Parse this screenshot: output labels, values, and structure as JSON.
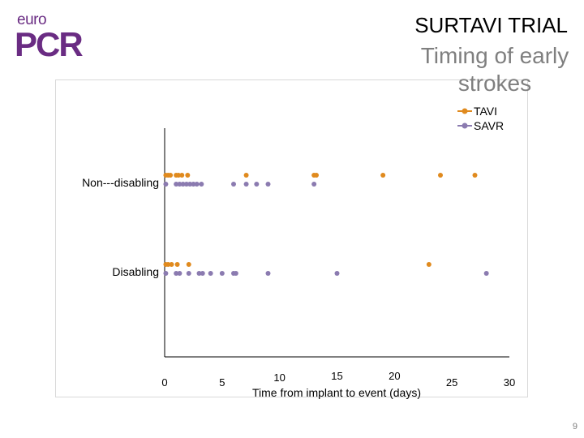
{
  "logo": {
    "line1": "euro",
    "line2": "PCR"
  },
  "slide": {
    "title": "SURTAVI TRIAL",
    "page_number": "9"
  },
  "colors": {
    "tavi": "#E08A1E",
    "savr": "#8B7BB0",
    "brand": "#6a2c83"
  },
  "chart_data": {
    "type": "scatter",
    "title": "Timing of early strokes",
    "xlabel": "Time from implant to event (days)",
    "ylabel": "",
    "xlim": [
      0,
      30
    ],
    "xticks": [
      "0",
      "5",
      "10",
      "15",
      "20",
      "25",
      "30"
    ],
    "categories": [
      "Non---disabling",
      "Disabling"
    ],
    "legend_position": "top-right",
    "grid": false,
    "series": [
      {
        "name": "TAVI",
        "color": "#E08A1E",
        "points": [
          {
            "x": 0.1,
            "y": "Non---disabling"
          },
          {
            "x": 0.3,
            "y": "Non---disabling"
          },
          {
            "x": 0.5,
            "y": "Non---disabling"
          },
          {
            "x": 1.0,
            "y": "Non---disabling"
          },
          {
            "x": 1.2,
            "y": "Non---disabling"
          },
          {
            "x": 1.5,
            "y": "Non---disabling"
          },
          {
            "x": 2.0,
            "y": "Non---disabling"
          },
          {
            "x": 7.1,
            "y": "Non---disabling"
          },
          {
            "x": 13.0,
            "y": "Non---disabling"
          },
          {
            "x": 13.2,
            "y": "Non---disabling"
          },
          {
            "x": 19.0,
            "y": "Non---disabling"
          },
          {
            "x": 24.0,
            "y": "Non---disabling"
          },
          {
            "x": 27.0,
            "y": "Non---disabling"
          },
          {
            "x": 0.1,
            "y": "Disabling"
          },
          {
            "x": 0.3,
            "y": "Disabling"
          },
          {
            "x": 0.6,
            "y": "Disabling"
          },
          {
            "x": 1.1,
            "y": "Disabling"
          },
          {
            "x": 2.1,
            "y": "Disabling"
          },
          {
            "x": 23.0,
            "y": "Disabling"
          }
        ]
      },
      {
        "name": "SAVR",
        "color": "#8B7BB0",
        "points": [
          {
            "x": 0.1,
            "y": "Non---disabling"
          },
          {
            "x": 1.0,
            "y": "Non---disabling"
          },
          {
            "x": 1.3,
            "y": "Non---disabling"
          },
          {
            "x": 1.6,
            "y": "Non---disabling"
          },
          {
            "x": 1.9,
            "y": "Non---disabling"
          },
          {
            "x": 2.2,
            "y": "Non---disabling"
          },
          {
            "x": 2.5,
            "y": "Non---disabling"
          },
          {
            "x": 2.8,
            "y": "Non---disabling"
          },
          {
            "x": 3.2,
            "y": "Non---disabling"
          },
          {
            "x": 6.0,
            "y": "Non---disabling"
          },
          {
            "x": 7.1,
            "y": "Non---disabling"
          },
          {
            "x": 8.0,
            "y": "Non---disabling"
          },
          {
            "x": 9.0,
            "y": "Non---disabling"
          },
          {
            "x": 13.0,
            "y": "Non---disabling"
          },
          {
            "x": 0.1,
            "y": "Disabling"
          },
          {
            "x": 1.0,
            "y": "Disabling"
          },
          {
            "x": 1.3,
            "y": "Disabling"
          },
          {
            "x": 2.1,
            "y": "Disabling"
          },
          {
            "x": 3.0,
            "y": "Disabling"
          },
          {
            "x": 3.3,
            "y": "Disabling"
          },
          {
            "x": 4.0,
            "y": "Disabling"
          },
          {
            "x": 5.0,
            "y": "Disabling"
          },
          {
            "x": 6.0,
            "y": "Disabling"
          },
          {
            "x": 6.2,
            "y": "Disabling"
          },
          {
            "x": 9.0,
            "y": "Disabling"
          },
          {
            "x": 15.0,
            "y": "Disabling"
          },
          {
            "x": 28.0,
            "y": "Disabling"
          }
        ]
      }
    ]
  }
}
